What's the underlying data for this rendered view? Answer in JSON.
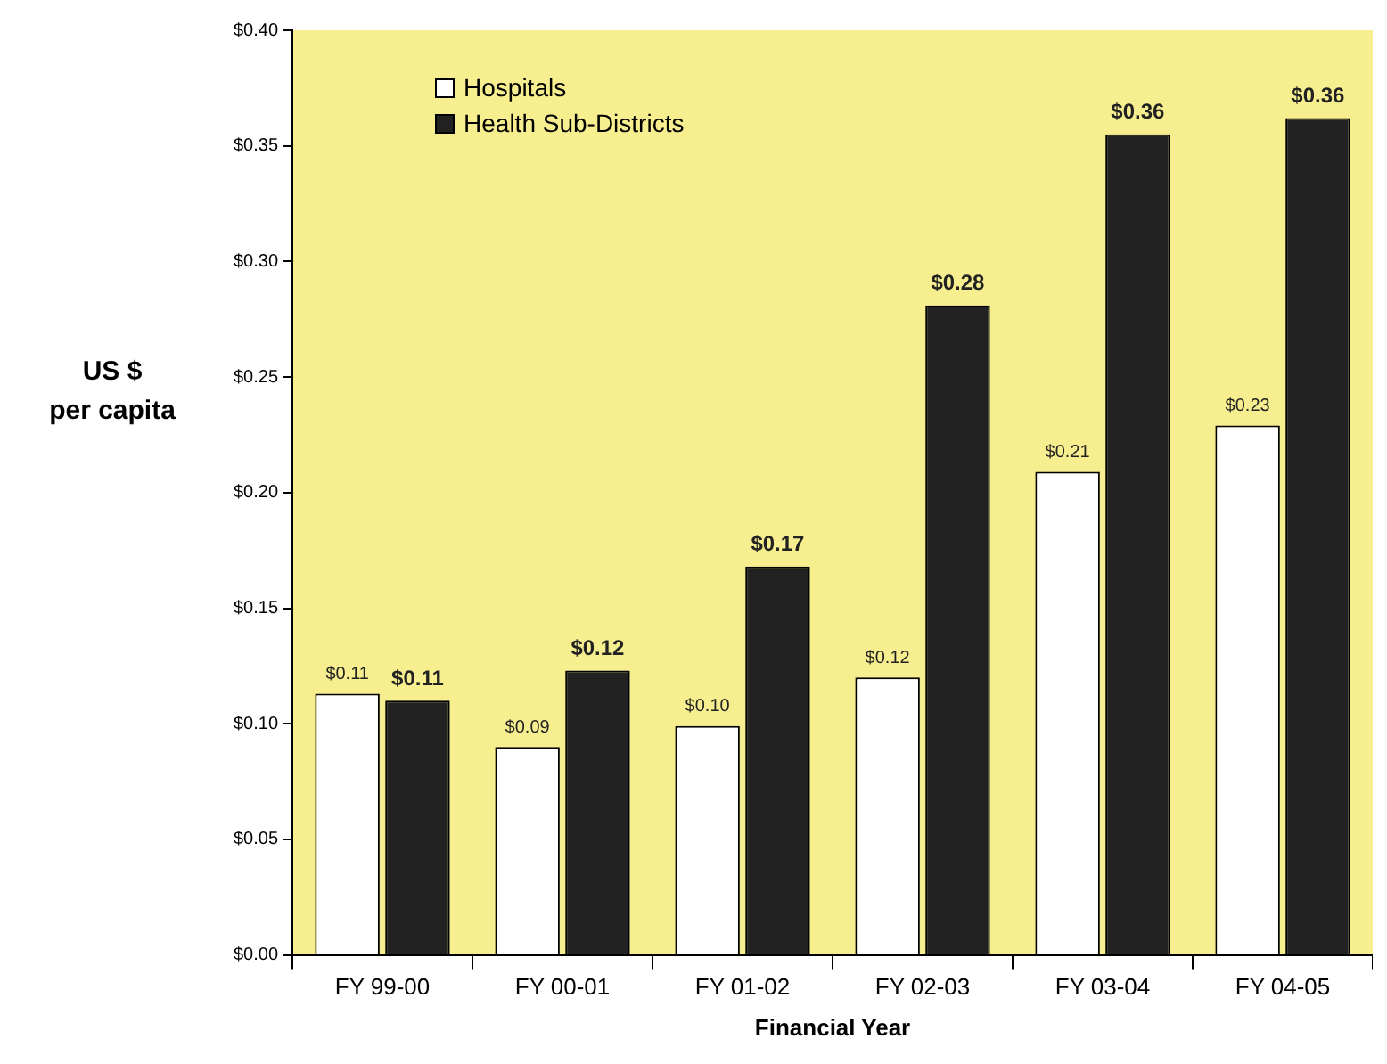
{
  "chart_data": {
    "type": "bar",
    "xlabel": "Financial Year",
    "ylabel": "US $\nper capita",
    "categories": [
      "FY 99-00",
      "FY 00-01",
      "FY 01-02",
      "FY 02-03",
      "FY 03-04",
      "FY 04-05"
    ],
    "series": [
      {
        "name": "Hospitals",
        "color": "#ffffff",
        "values": [
          0.113,
          0.09,
          0.099,
          0.12,
          0.209,
          0.229
        ],
        "value_labels": [
          "$0.11",
          "$0.09",
          "$0.10",
          "$0.12",
          "$0.21",
          "$0.23"
        ]
      },
      {
        "name": "Health Sub-Districts",
        "color": "#222222",
        "values": [
          0.11,
          0.123,
          0.168,
          0.281,
          0.355,
          0.362
        ],
        "value_labels": [
          "$0.11",
          "$0.12",
          "$0.17",
          "$0.28",
          "$0.36",
          "$0.36"
        ]
      }
    ],
    "ylim": [
      0,
      0.4
    ],
    "yticks": [
      {
        "value": 0,
        "label": "$0.00"
      },
      {
        "value": 0.05,
        "label": "$0.05"
      },
      {
        "value": 0.1,
        "label": "$0.10"
      },
      {
        "value": 0.15,
        "label": "$0.15"
      },
      {
        "value": 0.2,
        "label": "$0.20"
      },
      {
        "value": 0.25,
        "label": "$0.25"
      },
      {
        "value": 0.3,
        "label": "$0.30"
      },
      {
        "value": 0.35,
        "label": "$0.35"
      },
      {
        "value": 0.4,
        "label": "$0.40"
      }
    ],
    "grid": false,
    "legend": "top left"
  }
}
